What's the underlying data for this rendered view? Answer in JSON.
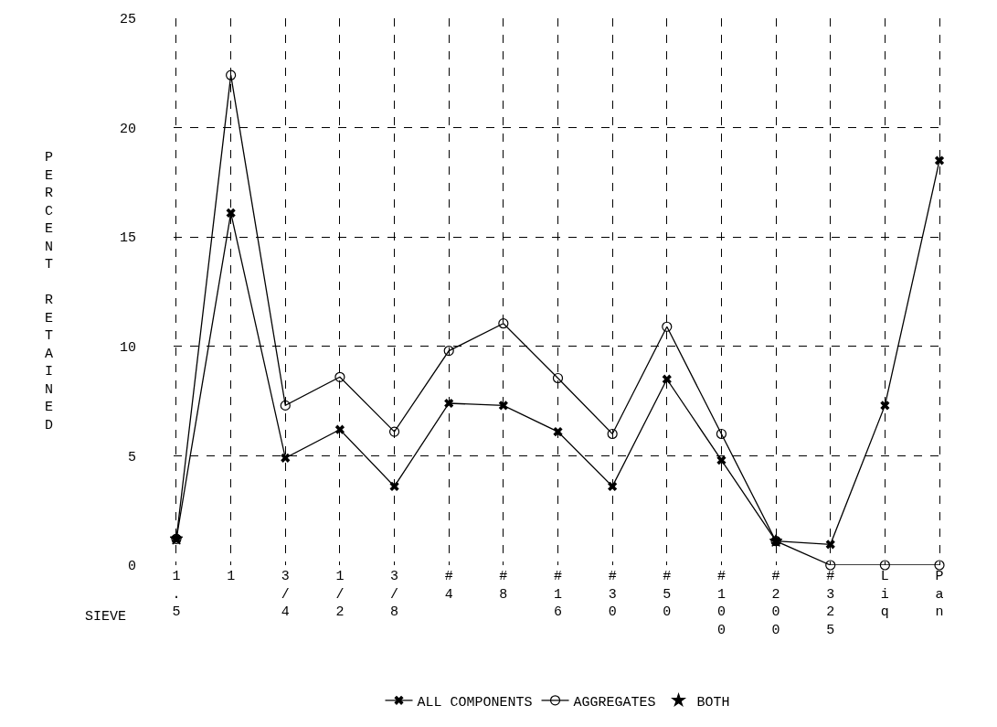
{
  "chart_data": {
    "type": "line",
    "xlabel": "SIEVE",
    "ylabel": "PERCENT RETAINED",
    "categories": [
      "1.5",
      "1",
      "3/4",
      "1/2",
      "3/8",
      "#4",
      "#8",
      "#16",
      "#30",
      "#50",
      "#100",
      "#200",
      "#325",
      "Liq",
      "Pan"
    ],
    "series": [
      {
        "name": "ALL COMPONENTS",
        "color": "#000000",
        "marker": "cross",
        "values": [
          1.2,
          16.1,
          4.9,
          6.2,
          3.6,
          7.4,
          7.3,
          6.1,
          3.6,
          8.5,
          4.8,
          1.1,
          0.95,
          7.3,
          18.5
        ]
      },
      {
        "name": "AGGREGATES",
        "color": "#000000",
        "marker": "circle",
        "values": [
          1.2,
          22.4,
          7.3,
          8.6,
          6.1,
          9.8,
          11.05,
          8.55,
          6.0,
          10.9,
          6.0,
          1.1,
          0,
          0,
          0
        ]
      },
      {
        "name": "BOTH",
        "type": "scatter",
        "color": "#000000",
        "marker": "star",
        "x": [
          "1.5",
          "#200"
        ],
        "values": [
          1.2,
          1.1
        ]
      }
    ],
    "ylim": [
      0,
      25
    ],
    "yticks": [
      0,
      5,
      10,
      15,
      20,
      25
    ],
    "grid": true,
    "line_style": "solid",
    "legend": "bottom"
  }
}
